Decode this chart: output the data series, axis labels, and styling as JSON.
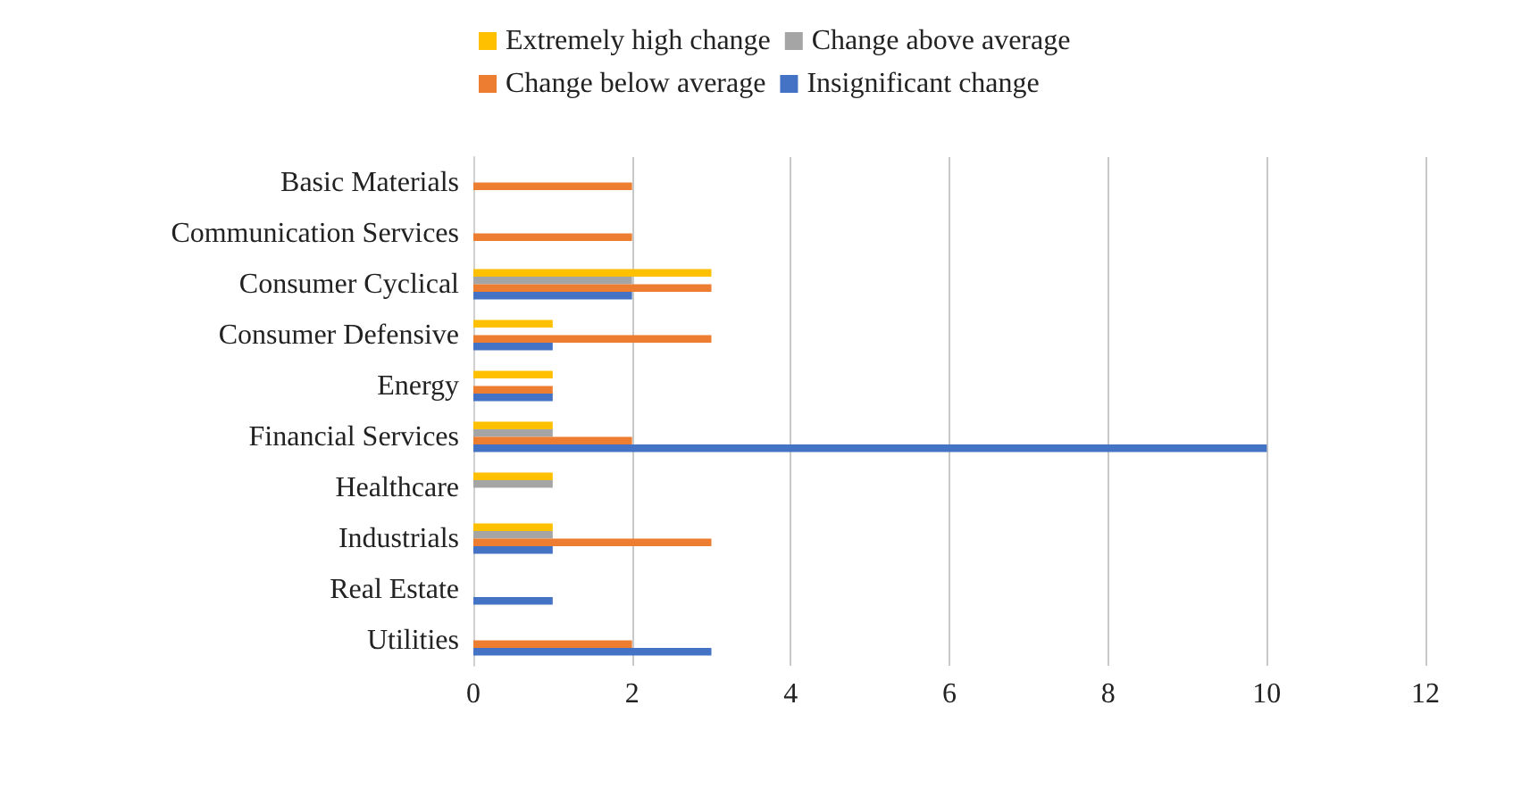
{
  "chart_data": {
    "type": "bar",
    "orientation": "horizontal",
    "categories": [
      "Basic Materials",
      "Communication Services",
      "Consumer Cyclical",
      "Consumer Defensive",
      "Energy",
      "Financial Services",
      "Healthcare",
      "Industrials",
      "Real Estate",
      "Utilities"
    ],
    "series": [
      {
        "name": "Extremely high change",
        "color": "#ffc000",
        "values": [
          null,
          null,
          3,
          1,
          1,
          1,
          1,
          1,
          null,
          null
        ]
      },
      {
        "name": "Change above average",
        "color": "#a5a5a5",
        "values": [
          null,
          null,
          2,
          null,
          null,
          1,
          1,
          1,
          null,
          null
        ]
      },
      {
        "name": "Change below average",
        "color": "#ed7d31",
        "values": [
          2,
          2,
          3,
          3,
          1,
          2,
          null,
          3,
          null,
          2
        ]
      },
      {
        "name": "Insignificant change",
        "color": "#4472c4",
        "values": [
          null,
          null,
          2,
          1,
          1,
          10,
          null,
          1,
          1,
          3
        ]
      }
    ],
    "xlim": [
      0,
      12
    ],
    "xticks": [
      0,
      2,
      4,
      6,
      8,
      10,
      12
    ],
    "grid": "x",
    "legend": "top"
  }
}
